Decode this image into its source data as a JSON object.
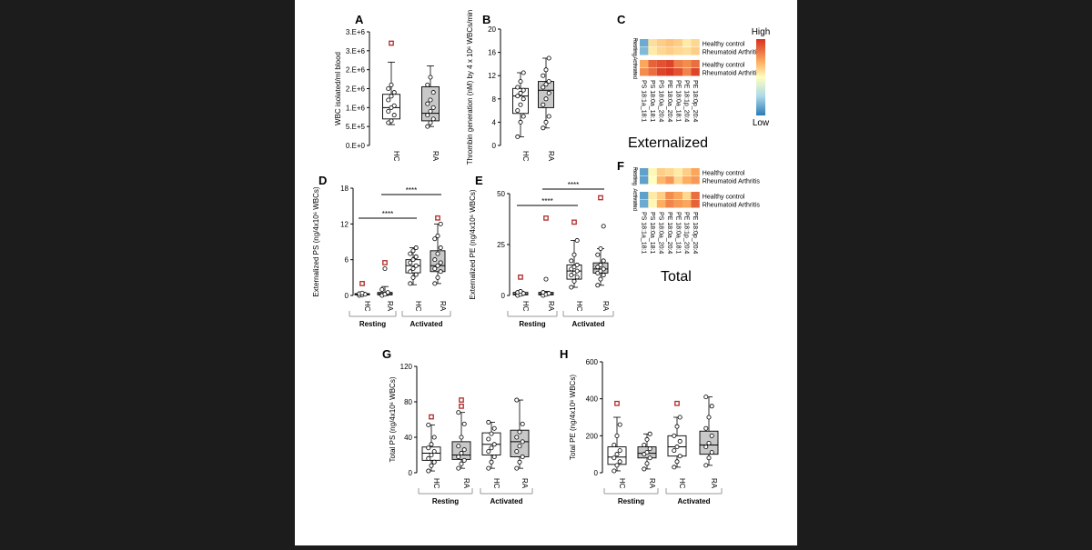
{
  "colors": {
    "background": "#1c1c1c",
    "panel": "#ffffff",
    "ra_box": "#c8c8c8",
    "hc_box": "#ffffff",
    "outlier": "#b02a2a",
    "sig_line": "#000000"
  },
  "groups": {
    "resting": "Resting",
    "activated": "Activated",
    "hc": "HC",
    "ra": "RA"
  },
  "heatmap_legend": {
    "high": "High",
    "low": "Low"
  },
  "heatmap_row_labels": [
    "Healthy control",
    "Rheumatoid Arthritis"
  ],
  "heatmap_side": [
    "Resting",
    "Activated"
  ],
  "heatmap_cols": [
    "PS 18:1a_18:1",
    "PS 18:0a_18:1",
    "PS 18:0a_20:4",
    "PE 18:0a_20:4",
    "PE 18:0a_18:1",
    "PE 18:1p_20:4",
    "PE 18:0p_20:4"
  ],
  "captions": {
    "externalized": "Externalized",
    "total": "Total"
  },
  "chart_data": [
    {
      "id": "A",
      "type": "box",
      "ylabel": "WBC isolated/ml blood",
      "yticks": [
        "0.E+0",
        "5.E+5",
        "1.E+6",
        "2.E+6",
        "2.E+6",
        "3.E+6",
        "3.E+6"
      ],
      "ylim": [
        0,
        3000000
      ],
      "categories": [
        "HC",
        "RA"
      ],
      "boxes": [
        {
          "q1": 700000,
          "median": 1000000,
          "q3": 1350000,
          "wmin": 550000,
          "wmax": 2200000,
          "outliers": [
            2700000
          ],
          "points": [
            600000,
            650000,
            800000,
            900000,
            1000000,
            1050000,
            1200000,
            1300000,
            1400000,
            1500000,
            1600000
          ]
        },
        {
          "q1": 650000,
          "median": 850000,
          "q3": 1550000,
          "wmin": 500000,
          "wmax": 2100000,
          "outliers": [],
          "points": [
            500000,
            600000,
            700000,
            800000,
            900000,
            1000000,
            1100000,
            1200000,
            1400000,
            1600000,
            1800000
          ]
        }
      ]
    },
    {
      "id": "B",
      "type": "box",
      "ylabel": "Thrombin generation (nM) by 4 x 10⁶ WBCs/min",
      "yticks": [
        "0",
        "4",
        "8",
        "12",
        "16",
        "20"
      ],
      "ylim": [
        0,
        20
      ],
      "categories": [
        "HC",
        "RA"
      ],
      "boxes": [
        {
          "q1": 5.5,
          "median": 8.5,
          "q3": 9.8,
          "wmin": 1.5,
          "wmax": 12.5,
          "outliers": [],
          "points": [
            1.5,
            4,
            5,
            6,
            7,
            8,
            8.5,
            9,
            9.5,
            10,
            11,
            12.5
          ]
        },
        {
          "q1": 6.5,
          "median": 9.5,
          "q3": 11,
          "wmin": 3,
          "wmax": 15,
          "outliers": [],
          "points": [
            3,
            4,
            5,
            7,
            8,
            9,
            10,
            10.5,
            11,
            12,
            13,
            15
          ]
        }
      ]
    },
    {
      "id": "D",
      "type": "box",
      "ylabel": "Externalized PS (ng/4x10⁶ WBCs)",
      "yticks": [
        "0",
        "6",
        "12",
        "18"
      ],
      "ylim": [
        0,
        18
      ],
      "categories": [
        "HC",
        "RA",
        "HC",
        "RA"
      ],
      "group_labels": [
        "Resting",
        "Activated"
      ],
      "significance": [
        {
          "from": 0,
          "to": 2,
          "label": "****"
        },
        {
          "from": 1,
          "to": 3,
          "label": "****"
        }
      ],
      "boxes": [
        {
          "q1": 0.1,
          "median": 0.2,
          "q3": 0.3,
          "wmin": 0,
          "wmax": 0.5,
          "outliers": [
            2
          ],
          "points": [
            0,
            0.1,
            0.2,
            0.3,
            0.4
          ]
        },
        {
          "q1": 0.1,
          "median": 0.3,
          "q3": 0.5,
          "wmin": 0,
          "wmax": 1.5,
          "outliers": [
            5.5
          ],
          "points": [
            0,
            0.2,
            0.5,
            1,
            4.5
          ]
        },
        {
          "q1": 3.8,
          "median": 5,
          "q3": 6,
          "wmin": 1.8,
          "wmax": 8,
          "outliers": [],
          "points": [
            2,
            3,
            3.5,
            4,
            4.5,
            5,
            5.5,
            6,
            6.5,
            7,
            7.5,
            8
          ]
        },
        {
          "q1": 4,
          "median": 5,
          "q3": 7.5,
          "wmin": 2,
          "wmax": 12,
          "outliers": [
            13
          ],
          "points": [
            2,
            3,
            4,
            4.5,
            5,
            5.5,
            6,
            7,
            8,
            9.5,
            10,
            12
          ]
        }
      ]
    },
    {
      "id": "E",
      "type": "box",
      "ylabel": "Externalized PE (ng/4x10⁶ WBCs)",
      "yticks": [
        "0",
        "25",
        "50"
      ],
      "ylim": [
        0,
        50
      ],
      "categories": [
        "HC",
        "RA",
        "HC",
        "RA"
      ],
      "group_labels": [
        "Resting",
        "Activated"
      ],
      "significance": [
        {
          "from": 0,
          "to": 2,
          "label": "****"
        },
        {
          "from": 1,
          "to": 3,
          "label": "****"
        }
      ],
      "boxes": [
        {
          "q1": 0.3,
          "median": 0.8,
          "q3": 1.5,
          "wmin": 0,
          "wmax": 2,
          "outliers": [
            9
          ],
          "points": [
            0,
            0.5,
            1,
            1.5,
            2
          ]
        },
        {
          "q1": 0.3,
          "median": 0.8,
          "q3": 1.5,
          "wmin": 0,
          "wmax": 2,
          "outliers": [
            38
          ],
          "points": [
            0,
            0.5,
            1,
            1.5,
            8
          ]
        },
        {
          "q1": 8,
          "median": 12,
          "q3": 15,
          "wmin": 4,
          "wmax": 27,
          "outliers": [
            36
          ],
          "points": [
            4,
            7,
            9,
            10,
            11,
            12,
            13,
            14,
            15,
            17,
            20,
            27
          ]
        },
        {
          "q1": 11,
          "median": 13,
          "q3": 16,
          "wmin": 5,
          "wmax": 23,
          "outliers": [
            48
          ],
          "points": [
            5,
            8,
            10,
            11,
            12,
            13,
            14,
            15,
            17,
            20,
            23,
            34
          ]
        }
      ]
    },
    {
      "id": "G",
      "type": "box",
      "ylabel": "Total PS (ng/4x10⁶ WBCs)",
      "yticks": [
        "0",
        "40",
        "80",
        "120"
      ],
      "ylim": [
        0,
        120
      ],
      "categories": [
        "HC",
        "RA",
        "HC",
        "RA"
      ],
      "group_labels": [
        "Resting",
        "Activated"
      ],
      "boxes": [
        {
          "q1": 14,
          "median": 22,
          "q3": 29,
          "wmin": 2,
          "wmax": 54,
          "outliers": [
            63
          ],
          "points": [
            2,
            8,
            12,
            16,
            20,
            24,
            28,
            32,
            40,
            54
          ]
        },
        {
          "q1": 15,
          "median": 20,
          "q3": 35,
          "wmin": 5,
          "wmax": 68,
          "outliers": [
            75,
            82
          ],
          "points": [
            5,
            10,
            14,
            18,
            22,
            26,
            30,
            40,
            55,
            68
          ]
        },
        {
          "q1": 20,
          "median": 32,
          "q3": 45,
          "wmin": 5,
          "wmax": 57,
          "outliers": [],
          "points": [
            5,
            12,
            18,
            24,
            28,
            32,
            38,
            44,
            50,
            57
          ]
        },
        {
          "q1": 18,
          "median": 35,
          "q3": 48,
          "wmin": 5,
          "wmax": 82,
          "outliers": [],
          "points": [
            5,
            12,
            18,
            24,
            30,
            35,
            40,
            46,
            55,
            82
          ]
        }
      ]
    },
    {
      "id": "H",
      "type": "box",
      "ylabel": "Total PE (ng/4x10⁶ WBCs)",
      "yticks": [
        "0",
        "200",
        "400",
        "600"
      ],
      "ylim": [
        0,
        600
      ],
      "categories": [
        "HC",
        "RA",
        "HC",
        "RA"
      ],
      "group_labels": [
        "Resting",
        "Activated"
      ],
      "boxes": [
        {
          "q1": 45,
          "median": 85,
          "q3": 140,
          "wmin": 10,
          "wmax": 300,
          "outliers": [
            375
          ],
          "points": [
            10,
            40,
            60,
            80,
            100,
            120,
            150,
            200,
            260
          ]
        },
        {
          "q1": 80,
          "median": 105,
          "q3": 140,
          "wmin": 20,
          "wmax": 210,
          "outliers": [],
          "points": [
            20,
            50,
            80,
            100,
            110,
            130,
            150,
            180,
            210
          ]
        },
        {
          "q1": 90,
          "median": 140,
          "q3": 200,
          "wmin": 30,
          "wmax": 300,
          "outliers": [
            375
          ],
          "points": [
            30,
            60,
            90,
            120,
            140,
            170,
            200,
            250,
            300
          ]
        },
        {
          "q1": 100,
          "median": 150,
          "q3": 225,
          "wmin": 40,
          "wmax": 410,
          "outliers": [],
          "points": [
            40,
            80,
            110,
            140,
            160,
            200,
            240,
            300,
            360,
            410
          ]
        }
      ]
    }
  ],
  "heatmap_C": [
    [
      0.15,
      0.58,
      0.62,
      0.65,
      0.62,
      0.55,
      0.6
    ],
    [
      0.2,
      0.55,
      0.6,
      0.62,
      0.6,
      0.58,
      0.62
    ],
    [
      0.72,
      0.88,
      0.92,
      0.95,
      0.82,
      0.78,
      0.85
    ],
    [
      0.78,
      0.85,
      0.95,
      0.98,
      0.92,
      0.8,
      0.95
    ]
  ],
  "heatmap_F": [
    [
      0.12,
      0.52,
      0.62,
      0.6,
      0.55,
      0.62,
      0.72
    ],
    [
      0.12,
      0.5,
      0.68,
      0.75,
      0.6,
      0.7,
      0.75
    ],
    [
      0.12,
      0.55,
      0.62,
      0.78,
      0.72,
      0.6,
      0.85
    ],
    [
      0.15,
      0.52,
      0.7,
      0.8,
      0.75,
      0.72,
      0.88
    ]
  ]
}
